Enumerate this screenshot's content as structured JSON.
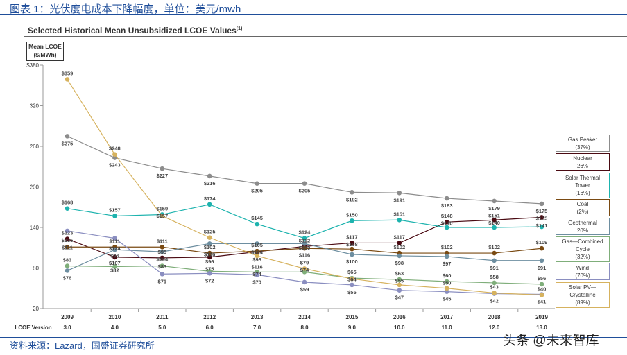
{
  "figure_title": "图表 1：光伏度电成本下降幅度，单位：美元/mwh",
  "footer": "资料来源：Lazard，国盛证券研究所",
  "watermark": "头条 @未来智库",
  "chart_data": {
    "type": "line",
    "title": "Selected Historical Mean Unsubsidized LCOE Values",
    "title_note": "(1)",
    "ylabel": "Mean LCOE ($/MWh)",
    "ylabel_line1": "Mean LCOE",
    "ylabel_line2": "($/MWh)",
    "ylim": [
      20,
      380
    ],
    "yticks": [
      "$380",
      "320",
      "260",
      "200",
      "140",
      "80",
      "20"
    ],
    "ytick_values": [
      380,
      320,
      260,
      200,
      140,
      80,
      20
    ],
    "grid": false,
    "legend_placement": "right",
    "categories": [
      "2009",
      "2010",
      "2011",
      "2012",
      "2013",
      "2014",
      "2015",
      "2016",
      "2017",
      "2018",
      "2019"
    ],
    "version_label": "LCOE Version",
    "versions": [
      "3.0",
      "4.0",
      "5.0",
      "6.0",
      "7.0",
      "8.0",
      "9.0",
      "10.0",
      "11.0",
      "12.0",
      "13.0"
    ],
    "series": [
      {
        "name": "Gas Peaker",
        "legend_lines": [
          "Gas Peaker",
          "(37%)"
        ],
        "color": "#8c8c8c",
        "values": [
          275,
          243,
          227,
          216,
          205,
          205,
          192,
          191,
          183,
          179,
          175
        ]
      },
      {
        "name": "Nuclear",
        "legend_lines": [
          "Nuclear",
          "26%"
        ],
        "color": "#4a0a12",
        "values": [
          123,
          96,
          95,
          96,
          104,
          112,
          117,
          117,
          148,
          151,
          155
        ]
      },
      {
        "name": "Solar Thermal Tower",
        "legend_lines": [
          "Solar Thermal",
          "Tower",
          "(16%)"
        ],
        "color": "#1db3ae",
        "values": [
          168,
          157,
          159,
          174,
          145,
          124,
          150,
          151,
          140,
          140,
          141
        ]
      },
      {
        "name": "Coal",
        "legend_lines": [
          "Coal",
          "(2%)"
        ],
        "color": "#7a4a12",
        "values": [
          111,
          111,
          111,
          102,
          105,
          109,
          108,
          102,
          102,
          102,
          109
        ]
      },
      {
        "name": "Geothermal",
        "legend_lines": [
          "Geothermal",
          "20%"
        ],
        "color": "#6d8ea0",
        "values": [
          76,
          107,
          104,
          116,
          116,
          116,
          100,
          98,
          97,
          91,
          91
        ]
      },
      {
        "name": "Gas—Combined Cycle",
        "legend_lines": [
          "Gas—Combined",
          "Cycle",
          "(32%)"
        ],
        "color": "#7fae7a",
        "values": [
          83,
          82,
          83,
          75,
          74,
          74,
          65,
          63,
          60,
          58,
          56
        ]
      },
      {
        "name": "Wind",
        "legend_lines": [
          "Wind",
          "(70%)"
        ],
        "color": "#8a8ec0",
        "values": [
          135,
          124,
          71,
          72,
          70,
          59,
          55,
          47,
          45,
          42,
          41
        ]
      },
      {
        "name": "Solar PV—Crystalline",
        "legend_lines": [
          "Solar PV—",
          "Crystalline",
          "(89%)"
        ],
        "color": "#d6b25e",
        "values": [
          359,
          248,
          157,
          125,
          98,
          79,
          64,
          55,
          50,
          43,
          40
        ]
      }
    ]
  }
}
